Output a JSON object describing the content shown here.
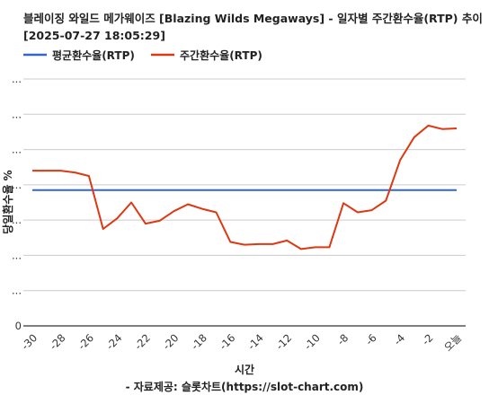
{
  "chart_data": {
    "type": "line",
    "title_line1": "블레이징 와일드 메가웨이즈 [Blazing Wilds Megaways] - 일자별 주간환수율(RTP) 추이",
    "title_line2": "[2025-07-27 18:05:29]",
    "xlabel": "시간",
    "ylabel": "당일환수율 %",
    "source": "- 자료제공: 슬롯차트(https://slot-chart.com)",
    "x_ticks": [
      "-30",
      "-28",
      "-26",
      "-24",
      "-22",
      "-20",
      "-18",
      "-16",
      "-14",
      "-12",
      "-10",
      "-8",
      "-6",
      "-4",
      "-2",
      "오늘"
    ],
    "y_ticks": [
      "0",
      "...",
      "...",
      "...",
      "...",
      "...",
      "...",
      "..."
    ],
    "x": [
      -30,
      -29,
      -28,
      -27,
      -26,
      -25,
      -24,
      -23,
      -22,
      -21,
      -20,
      -19,
      -18,
      -17,
      -16,
      -15,
      -14,
      -13,
      -12,
      -11,
      -10,
      -9,
      -8,
      -7,
      -6,
      -5,
      -4,
      -3,
      -2,
      -1,
      0
    ],
    "xlim": [
      -30,
      0
    ],
    "ylim": [
      0,
      7
    ],
    "series": [
      {
        "name": "평균환수율(RTP)",
        "color": "#3366cc",
        "values": [
          3.85,
          3.85,
          3.85,
          3.85,
          3.85,
          3.85,
          3.85,
          3.85,
          3.85,
          3.85,
          3.85,
          3.85,
          3.85,
          3.85,
          3.85,
          3.85,
          3.85,
          3.85,
          3.85,
          3.85,
          3.85,
          3.85,
          3.85,
          3.85,
          3.85,
          3.85,
          3.85,
          3.85,
          3.85,
          3.85,
          3.85
        ]
      },
      {
        "name": "주간환수율(RTP)",
        "color": "#dc3912",
        "values": [
          4.4,
          4.4,
          4.4,
          4.35,
          4.25,
          2.75,
          3.05,
          3.5,
          2.9,
          2.98,
          3.25,
          3.45,
          3.32,
          3.22,
          2.38,
          2.3,
          2.32,
          2.32,
          2.42,
          2.18,
          2.23,
          2.23,
          3.48,
          3.22,
          3.28,
          3.55,
          4.7,
          5.35,
          5.68,
          5.58,
          5.6
        ]
      }
    ]
  }
}
